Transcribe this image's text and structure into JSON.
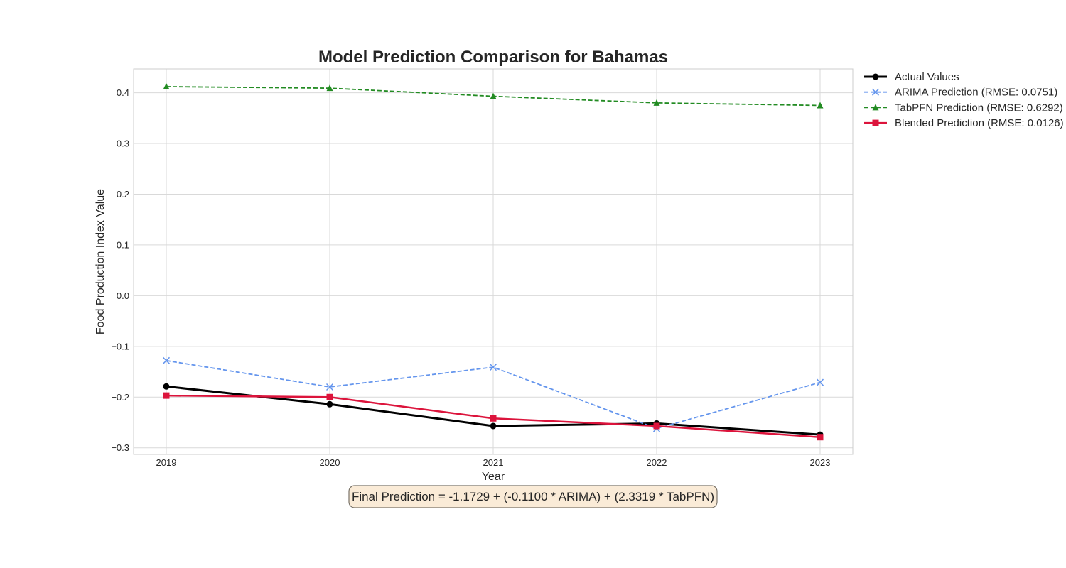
{
  "chart_data": {
    "type": "line",
    "title": "Model Prediction Comparison for Bahamas",
    "xlabel": "Year",
    "ylabel": "Food Production Index Value",
    "x": [
      2019,
      2020,
      2021,
      2022,
      2023
    ],
    "xlim": [
      2018.8,
      2023.2
    ],
    "ylim": [
      -0.313,
      0.447
    ],
    "yticks": [
      -0.3,
      -0.2,
      -0.1,
      0.0,
      0.1,
      0.2,
      0.3,
      0.4
    ],
    "ytick_labels": [
      "−0.3",
      "−0.2",
      "−0.1",
      "0.0",
      "0.1",
      "0.2",
      "0.3",
      "0.4"
    ],
    "grid": true,
    "legend_position": "outside-right-top",
    "series": [
      {
        "name": "Actual Values",
        "color": "#000000",
        "linestyle": "solid",
        "marker": "circle",
        "values": [
          -0.179,
          -0.214,
          -0.257,
          -0.252,
          -0.274
        ]
      },
      {
        "name": "ARIMA Prediction (RMSE: 0.0751)",
        "color": "#6495ED",
        "linestyle": "dashed",
        "marker": "x",
        "values": [
          -0.128,
          -0.18,
          -0.141,
          -0.262,
          -0.171
        ]
      },
      {
        "name": "TabPFN Prediction (RMSE: 0.6292)",
        "color": "#228B22",
        "linestyle": "dashed",
        "marker": "triangle",
        "values": [
          0.412,
          0.409,
          0.393,
          0.38,
          0.375
        ]
      },
      {
        "name": "Blended Prediction (RMSE: 0.0126)",
        "color": "#DC143C",
        "linestyle": "solid",
        "marker": "square",
        "values": [
          -0.197,
          -0.2,
          -0.242,
          -0.257,
          -0.279
        ]
      }
    ],
    "annotation": "Final Prediction = -1.1729 + (-0.1100 * ARIMA) + (2.3319 * TabPFN)"
  }
}
